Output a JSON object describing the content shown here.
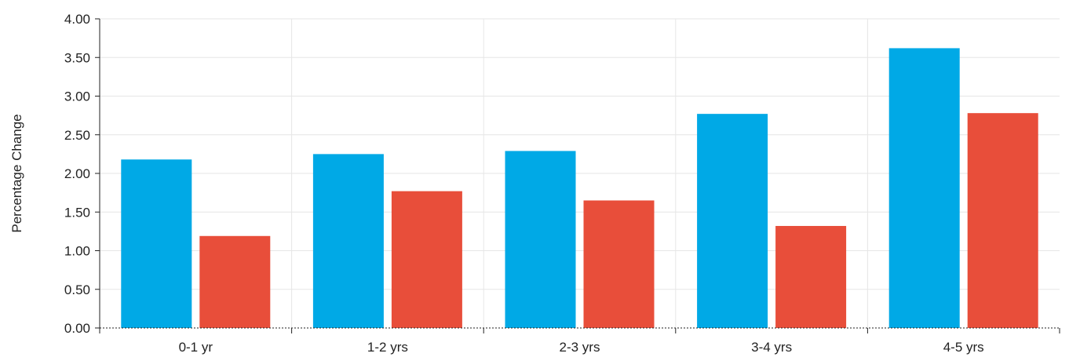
{
  "chart_data": {
    "type": "bar",
    "title": "",
    "xlabel": "",
    "ylabel": "Percentage Change",
    "categories": [
      "0-1 yr",
      "1-2 yrs",
      "2-3 yrs",
      "3-4 yrs",
      "4-5 yrs"
    ],
    "series": [
      {
        "color": "#00a9e6",
        "values": [
          2.18,
          2.25,
          2.29,
          2.77,
          3.62
        ]
      },
      {
        "color": "#e84e3a",
        "values": [
          1.19,
          1.77,
          1.65,
          1.32,
          2.78
        ]
      }
    ],
    "ylim": [
      0,
      4
    ],
    "yticks": [
      "0.00",
      "0.50",
      "1.00",
      "1.50",
      "2.00",
      "2.50",
      "3.00",
      "3.50",
      "4.00"
    ],
    "grid": true,
    "legend": "none"
  }
}
